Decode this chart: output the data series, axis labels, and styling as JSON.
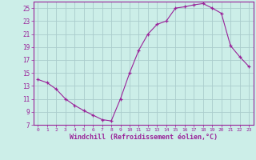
{
  "x": [
    0,
    1,
    2,
    3,
    4,
    5,
    6,
    7,
    8,
    9,
    10,
    11,
    12,
    13,
    14,
    15,
    16,
    17,
    18,
    19,
    20,
    21,
    22,
    23
  ],
  "y": [
    14.0,
    13.5,
    12.5,
    11.0,
    10.0,
    9.2,
    8.5,
    7.8,
    7.6,
    11.0,
    15.0,
    18.5,
    21.0,
    22.5,
    23.0,
    25.0,
    25.2,
    25.5,
    25.7,
    25.0,
    24.2,
    19.2,
    17.5,
    16.0
  ],
  "line_color": "#992299",
  "marker": "+",
  "bg_color": "#cceee8",
  "grid_color": "#aacccc",
  "axis_color": "#992299",
  "xlabel": "Windchill (Refroidissement éolien,°C)",
  "xlim": [
    -0.5,
    23.5
  ],
  "ylim": [
    7,
    26
  ],
  "yticks": [
    7,
    9,
    11,
    13,
    15,
    17,
    19,
    21,
    23,
    25
  ],
  "xticks": [
    0,
    1,
    2,
    3,
    4,
    5,
    6,
    7,
    8,
    9,
    10,
    11,
    12,
    13,
    14,
    15,
    16,
    17,
    18,
    19,
    20,
    21,
    22,
    23
  ],
  "font_color": "#992299"
}
